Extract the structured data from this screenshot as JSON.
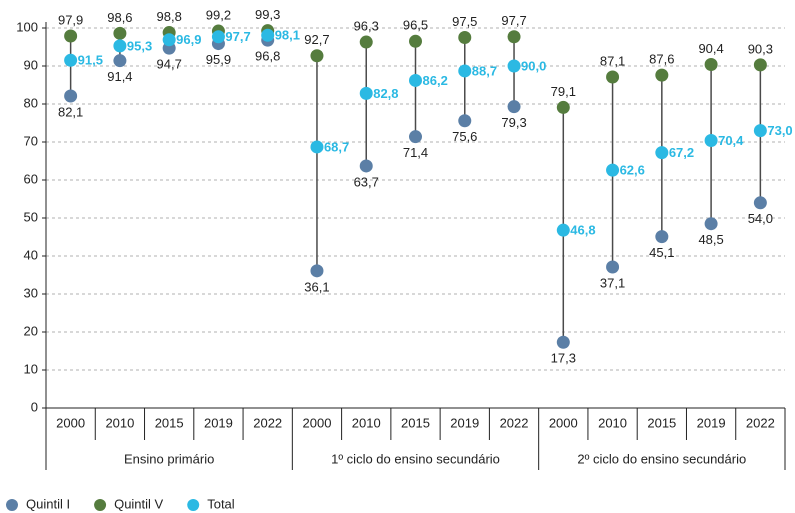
{
  "chart_data": {
    "type": "dumbbell",
    "categories": [
      "2000",
      "2010",
      "2015",
      "2019",
      "2022",
      "2000",
      "2010",
      "2015",
      "2019",
      "2022",
      "2000",
      "2010",
      "2015",
      "2019",
      "2022"
    ],
    "groups": [
      "Ensino primário",
      "1º ciclo do ensino secundário",
      "2º ciclo do ensino secundário"
    ],
    "ylim": [
      0,
      100
    ],
    "yticks": [
      0,
      10,
      20,
      30,
      40,
      50,
      60,
      70,
      80,
      90,
      100
    ],
    "grid": true,
    "series": [
      {
        "name": "Quintil I",
        "color": "#5b7fa6",
        "values": [
          82.1,
          91.4,
          94.7,
          95.9,
          96.8,
          36.1,
          63.7,
          71.4,
          75.6,
          79.3,
          17.3,
          37.1,
          45.1,
          48.5,
          54.0
        ],
        "value_labels": [
          "82,1",
          "91,4",
          "94,7",
          "95,9",
          "96,8",
          "36,1",
          "63,7",
          "71,4",
          "75,6",
          "79,3",
          "17,3",
          "37,1",
          "45,1",
          "48,5",
          "54,0"
        ]
      },
      {
        "name": "Quintil V",
        "color": "#557c3e",
        "values": [
          97.9,
          98.6,
          98.8,
          99.2,
          99.3,
          92.7,
          96.3,
          96.5,
          97.5,
          97.7,
          79.1,
          87.1,
          87.6,
          90.4,
          90.3
        ],
        "value_labels": [
          "97,9",
          "98,6",
          "98,8",
          "99,2",
          "99,3",
          "92,7",
          "96,3",
          "96,5",
          "97,5",
          "97,7",
          "79,1",
          "87,1",
          "87,6",
          "90,4",
          "90,3"
        ]
      },
      {
        "name": "Total",
        "color": "#2bb9e3",
        "values": [
          91.5,
          95.3,
          96.9,
          97.7,
          98.1,
          68.7,
          82.8,
          86.2,
          88.7,
          90.0,
          46.8,
          62.6,
          67.2,
          70.4,
          73.0
        ],
        "value_labels": [
          "91,5",
          "95,3",
          "96,9",
          "97,7",
          "98,1",
          "68,7",
          "82,8",
          "86,2",
          "88,7",
          "90,0",
          "46,8",
          "62,6",
          "67,2",
          "70,4",
          "73,0"
        ]
      }
    ]
  }
}
